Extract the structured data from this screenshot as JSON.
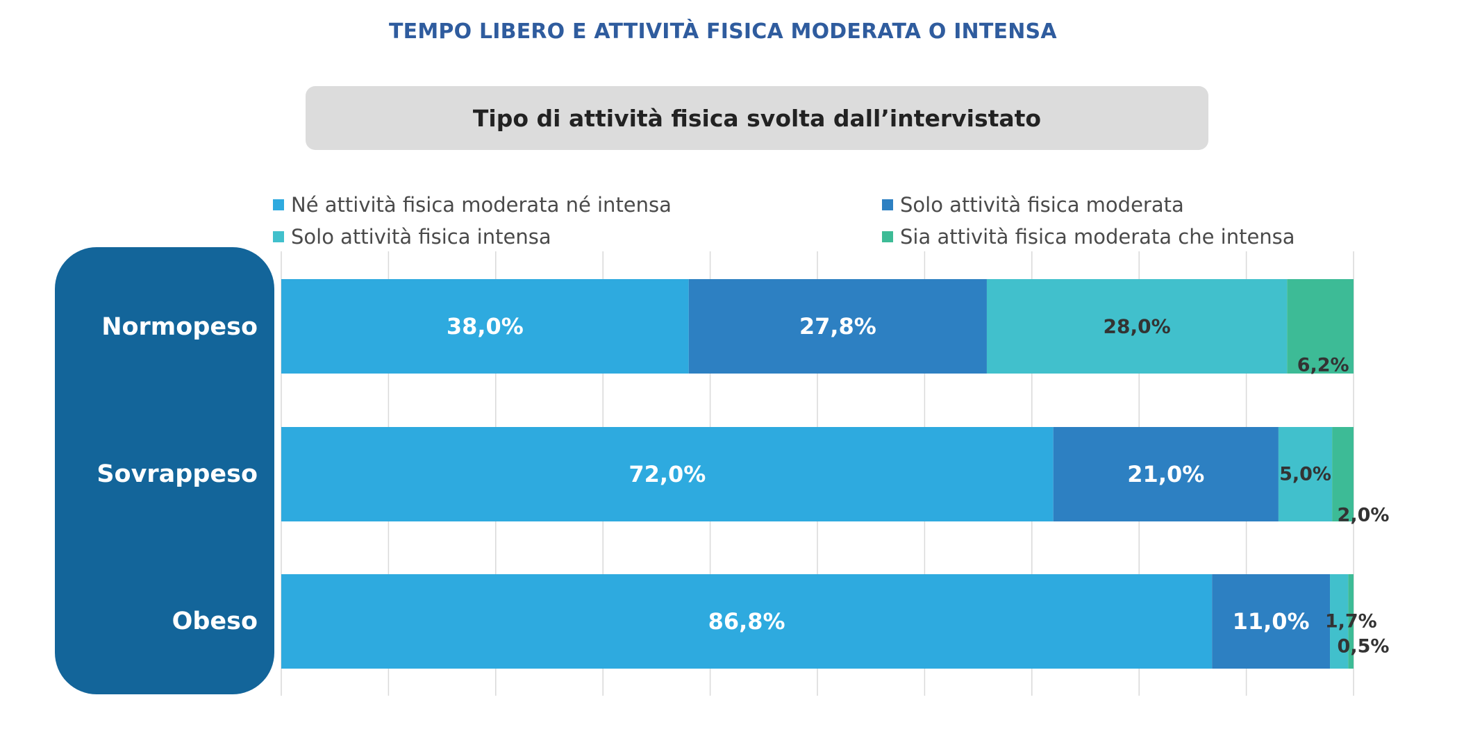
{
  "header": {
    "title": "TEMPO LIBERO E ATTIVITÀ FISICA MODERATA O INTENSA",
    "subtitle": "Tipo di attività fisica svolta dall’intervistato"
  },
  "chart_data": {
    "type": "bar",
    "orientation": "horizontal",
    "stacked": true,
    "title": "Tipo di attività fisica svolta dall’intervistato",
    "categories": [
      "Normopeso",
      "Sovrappeso",
      "Obeso"
    ],
    "series": [
      {
        "name": "Né attività fisica moderata né intensa",
        "color": "#2eaadf",
        "values": [
          38.0,
          72.0,
          86.8
        ],
        "labels": [
          "38,0%",
          "72,0%",
          "86,8%"
        ]
      },
      {
        "name": "Solo attività fisica moderata",
        "color": "#2d80c2",
        "values": [
          27.8,
          21.0,
          11.0
        ],
        "labels": [
          "27,8%",
          "21,0%",
          "11,0%"
        ]
      },
      {
        "name": "Solo attività fisica intensa",
        "color": "#41c0cc",
        "values": [
          28.0,
          5.0,
          1.7
        ],
        "labels": [
          "28,0%",
          "5,0%",
          "1,7%"
        ]
      },
      {
        "name": "Sia attività fisica moderata che intensa",
        "color": "#3dbb96",
        "values": [
          6.2,
          2.0,
          0.5
        ],
        "labels": [
          "6,2%",
          "2,0%",
          "0,5%"
        ]
      }
    ],
    "xlim": [
      0,
      100
    ],
    "grid": true,
    "legend": "top"
  }
}
